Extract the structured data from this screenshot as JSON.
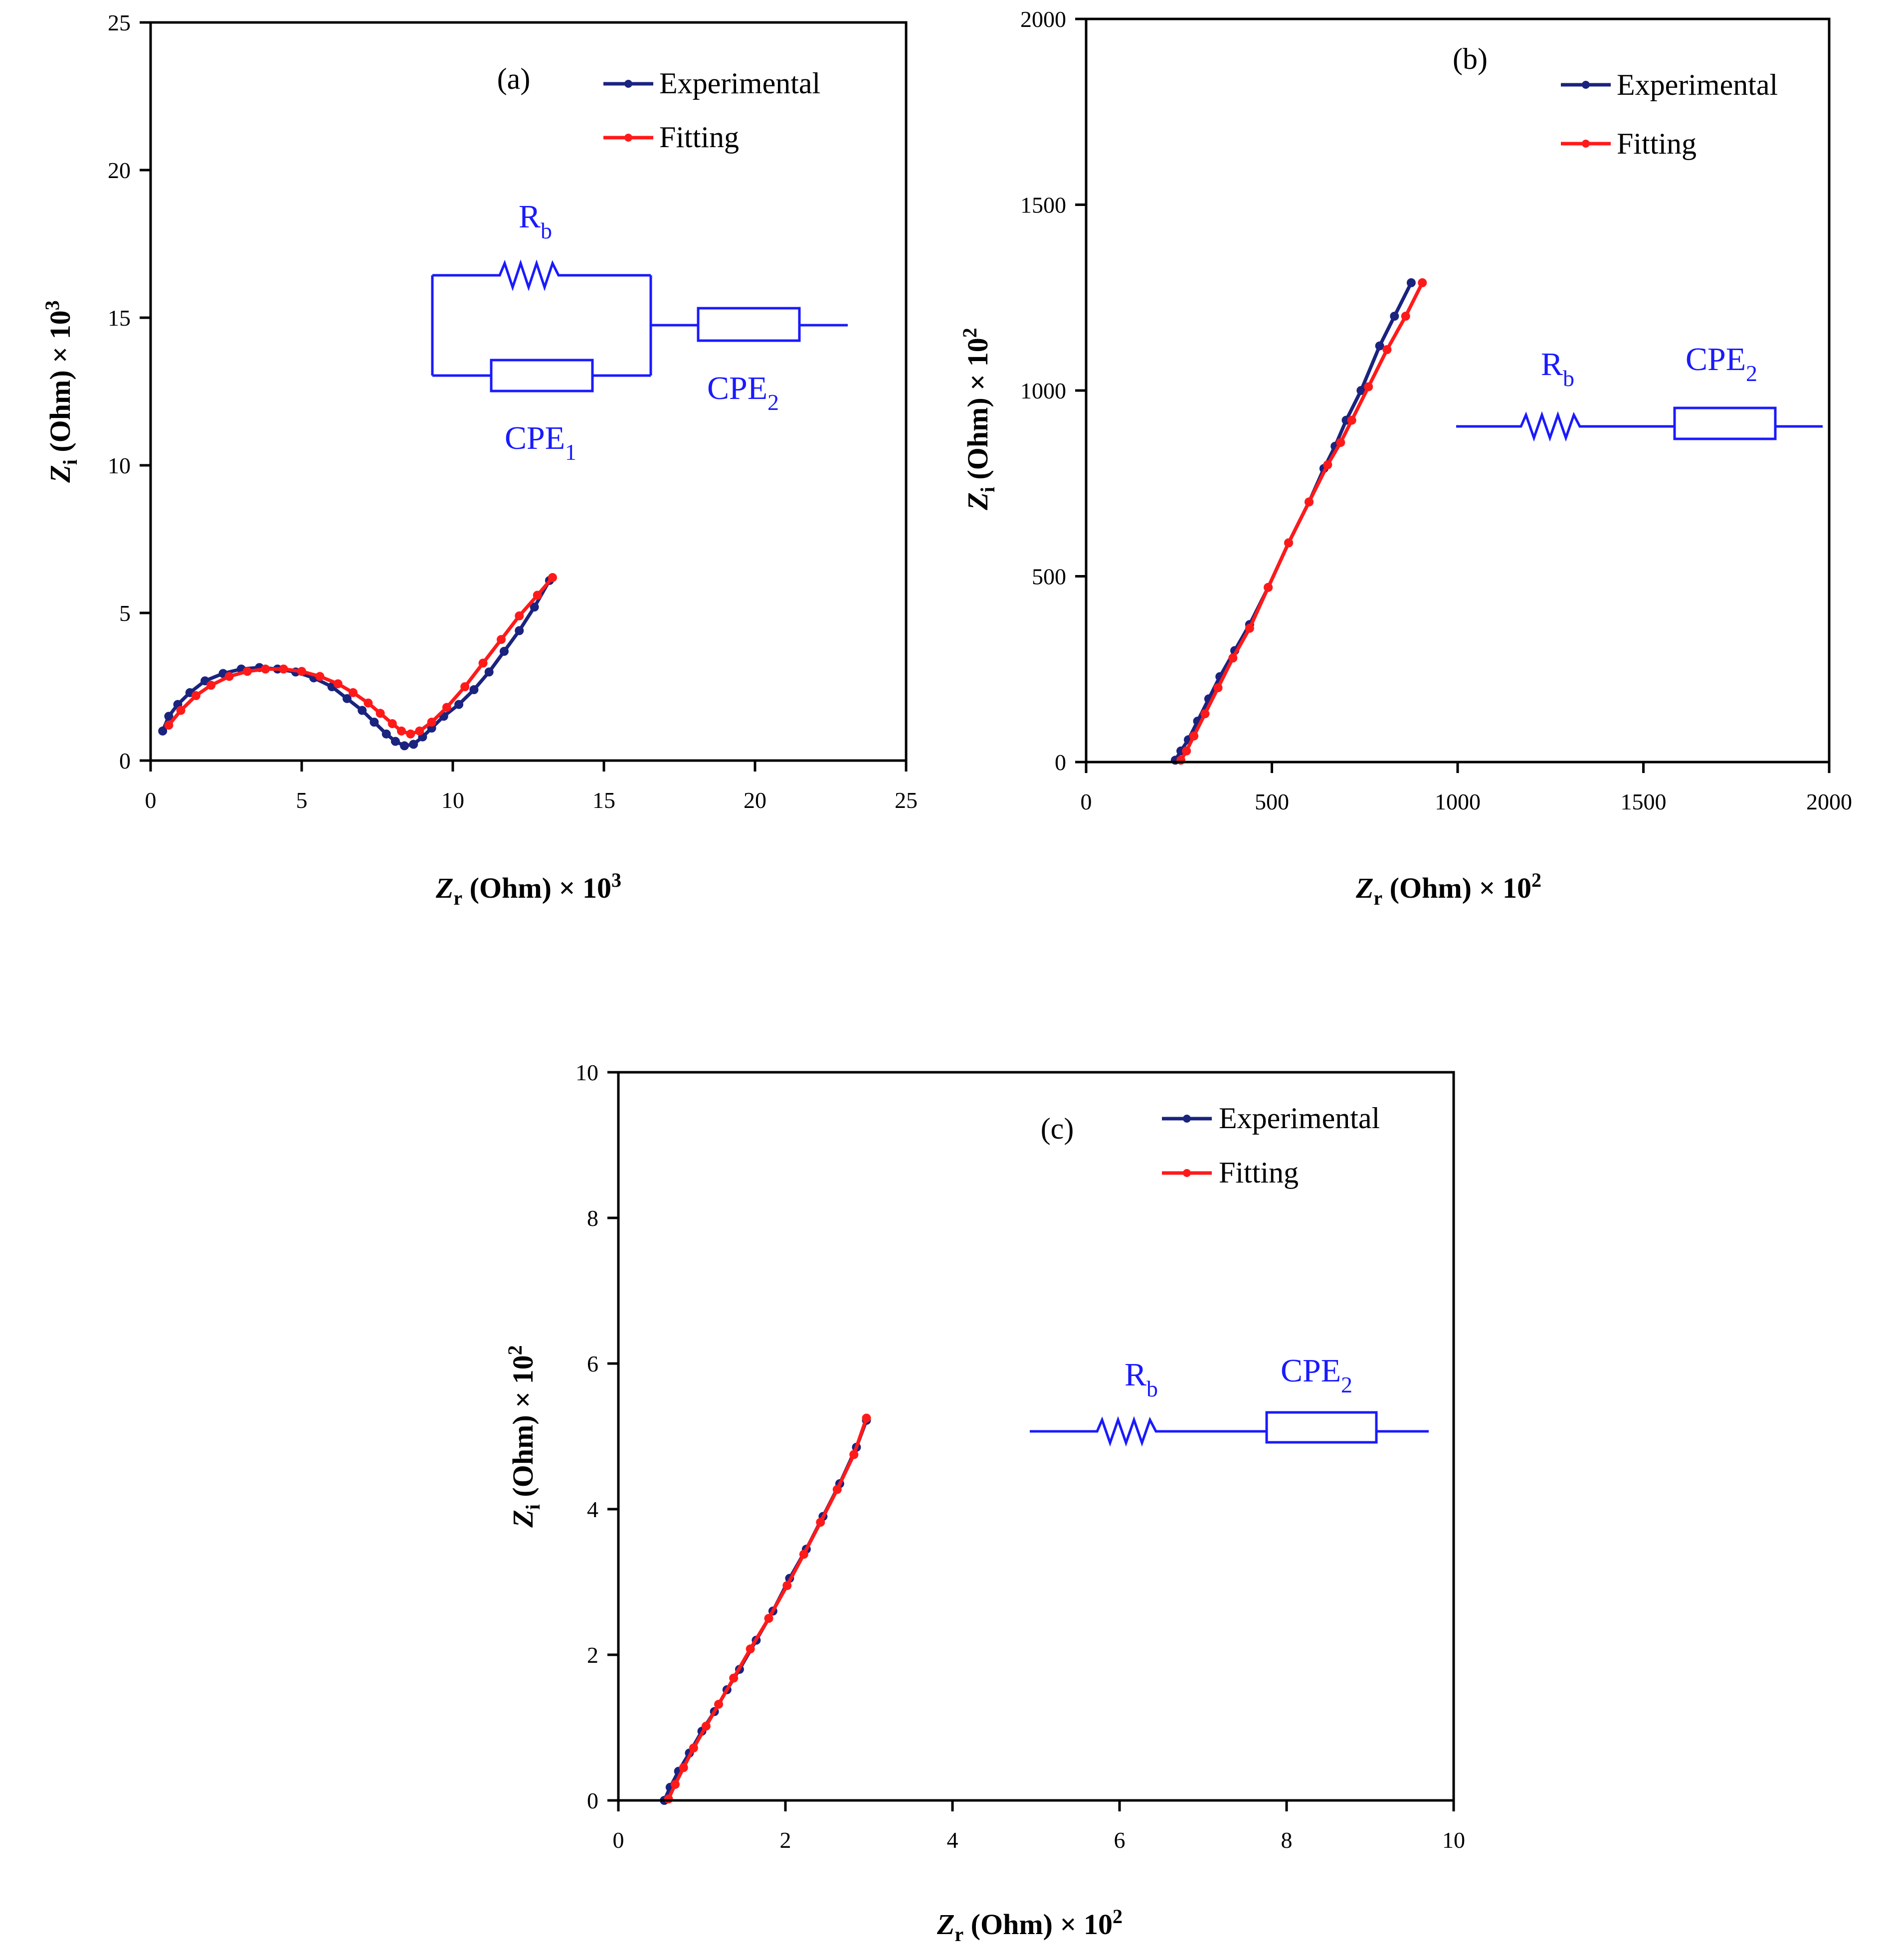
{
  "colors": {
    "experimental": "#1a237e",
    "fitting": "#ff1a1a",
    "circuit": "#1a1aff",
    "axis": "#000000"
  },
  "legend": {
    "experimental": "Experimental",
    "fitting": "Fitting"
  },
  "circuit_labels": {
    "rb_main": "R",
    "rb_sub": "b",
    "cpe_main": "CPE",
    "cpe1_sub": "1",
    "cpe2_sub": "2"
  },
  "chart_data": [
    {
      "id": "a",
      "type": "scatter",
      "panel_label": "(a)",
      "xlabel": {
        "var": "Z",
        "sub": "r",
        "unit": " (Ohm) × 10",
        "exp": "3"
      },
      "ylabel": {
        "var": "Z",
        "sub": "i",
        "unit": " (Ohm) × 10",
        "exp": "3"
      },
      "xlim": [
        0,
        25
      ],
      "ylim": [
        0,
        25
      ],
      "xticks": [
        "0",
        "5",
        "10",
        "15",
        "20",
        "25"
      ],
      "yticks": [
        "0",
        "5",
        "10",
        "15",
        "20",
        "25"
      ],
      "legend_position": "top-right",
      "circuit": "parallel Rb-CPE1 in series with CPE2",
      "series": [
        {
          "name": "Experimental",
          "x": [
            0.4,
            0.6,
            0.9,
            1.3,
            1.8,
            2.4,
            3.0,
            3.6,
            4.2,
            4.8,
            5.4,
            6.0,
            6.5,
            7.0,
            7.4,
            7.8,
            8.1,
            8.4,
            8.7,
            9.0,
            9.3,
            9.7,
            10.2,
            10.7,
            11.2,
            11.7,
            12.2,
            12.7,
            13.2
          ],
          "y": [
            1.0,
            1.5,
            1.9,
            2.3,
            2.7,
            2.95,
            3.1,
            3.15,
            3.1,
            3.0,
            2.8,
            2.5,
            2.1,
            1.7,
            1.3,
            0.9,
            0.65,
            0.5,
            0.55,
            0.8,
            1.1,
            1.5,
            1.9,
            2.4,
            3.0,
            3.7,
            4.4,
            5.2,
            6.1
          ]
        },
        {
          "name": "Fitting",
          "x": [
            0.6,
            1.0,
            1.5,
            2.0,
            2.6,
            3.2,
            3.8,
            4.4,
            5.0,
            5.6,
            6.2,
            6.7,
            7.2,
            7.6,
            8.0,
            8.3,
            8.6,
            8.9,
            9.3,
            9.8,
            10.4,
            11.0,
            11.6,
            12.2,
            12.8,
            13.3
          ],
          "y": [
            1.2,
            1.7,
            2.2,
            2.55,
            2.85,
            3.02,
            3.1,
            3.1,
            3.02,
            2.85,
            2.6,
            2.3,
            1.95,
            1.6,
            1.25,
            1.0,
            0.9,
            1.0,
            1.3,
            1.8,
            2.5,
            3.3,
            4.1,
            4.9,
            5.6,
            6.2
          ]
        }
      ]
    },
    {
      "id": "b",
      "type": "scatter",
      "panel_label": "(b)",
      "xlabel": {
        "var": "Z",
        "sub": "r",
        "unit": " (Ohm) × 10",
        "exp": "2"
      },
      "ylabel": {
        "var": "Z",
        "sub": "i",
        "unit": " (Ohm) × 10",
        "exp": "2"
      },
      "xlim": [
        0,
        2000
      ],
      "ylim": [
        0,
        2000
      ],
      "xticks": [
        "0",
        "500",
        "1000",
        "1500",
        "2000"
      ],
      "yticks": [
        "0",
        "500",
        "1000",
        "1500",
        "2000"
      ],
      "legend_position": "top-right",
      "circuit": "Rb in series with CPE2",
      "series": [
        {
          "name": "Experimental",
          "x": [
            240,
            255,
            275,
            300,
            330,
            360,
            400,
            440,
            490,
            545,
            600,
            640,
            670,
            700,
            740,
            790,
            830,
            875
          ],
          "y": [
            5,
            30,
            60,
            110,
            170,
            230,
            300,
            370,
            470,
            590,
            700,
            790,
            850,
            920,
            1000,
            1120,
            1200,
            1290
          ]
        },
        {
          "name": "Fitting",
          "x": [
            255,
            270,
            290,
            320,
            355,
            395,
            440,
            490,
            545,
            600,
            650,
            685,
            715,
            760,
            810,
            860,
            905
          ],
          "y": [
            5,
            30,
            70,
            130,
            200,
            280,
            360,
            470,
            590,
            700,
            800,
            860,
            920,
            1010,
            1110,
            1200,
            1290
          ]
        }
      ]
    },
    {
      "id": "c",
      "type": "scatter",
      "panel_label": "(c)",
      "xlabel": {
        "var": "Z",
        "sub": "r",
        "unit": " (Ohm) × 10",
        "exp": "2"
      },
      "ylabel": {
        "var": "Z",
        "sub": "i",
        "unit": " (Ohm) × 10",
        "exp": "2"
      },
      "xlim": [
        0,
        10
      ],
      "ylim": [
        0,
        10
      ],
      "xticks": [
        "0",
        "2",
        "4",
        "6",
        "8",
        "10"
      ],
      "yticks": [
        "0",
        "2",
        "4",
        "6",
        "8",
        "10"
      ],
      "legend_position": "top-right",
      "circuit": "Rb in series with CPE2",
      "series": [
        {
          "name": "Experimental",
          "x": [
            0.55,
            0.62,
            0.72,
            0.85,
            1.0,
            1.15,
            1.3,
            1.45,
            1.65,
            1.85,
            2.05,
            2.25,
            2.45,
            2.65,
            2.85,
            2.97
          ],
          "y": [
            0.0,
            0.18,
            0.4,
            0.65,
            0.95,
            1.22,
            1.52,
            1.8,
            2.2,
            2.6,
            3.05,
            3.45,
            3.9,
            4.35,
            4.85,
            5.22
          ]
        },
        {
          "name": "Fitting",
          "x": [
            0.6,
            0.68,
            0.78,
            0.9,
            1.05,
            1.2,
            1.38,
            1.58,
            1.8,
            2.02,
            2.22,
            2.42,
            2.62,
            2.82,
            2.97
          ],
          "y": [
            0.02,
            0.22,
            0.45,
            0.72,
            1.02,
            1.32,
            1.68,
            2.08,
            2.5,
            2.95,
            3.38,
            3.82,
            4.27,
            4.75,
            5.25
          ]
        }
      ]
    }
  ]
}
